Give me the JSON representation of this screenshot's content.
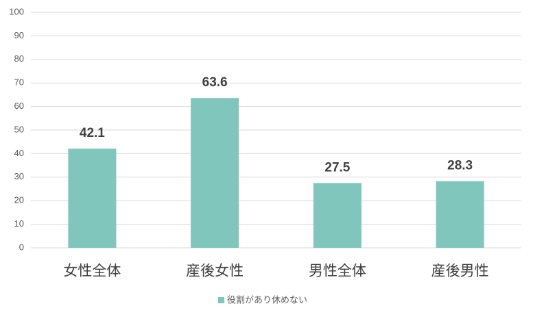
{
  "chart_data": {
    "type": "bar",
    "categories": [
      "女性全体",
      "産後女性",
      "男性全体",
      "産後男性"
    ],
    "series": [
      {
        "name": "役割があり休めない",
        "color": "#80c6bd",
        "values": [
          42.1,
          63.6,
          27.5,
          28.3
        ]
      }
    ],
    "ylim": [
      0,
      100
    ],
    "yticks": [
      0,
      10,
      20,
      30,
      40,
      50,
      60,
      70,
      80,
      90,
      100
    ],
    "grid": true,
    "legend": "bottom"
  }
}
